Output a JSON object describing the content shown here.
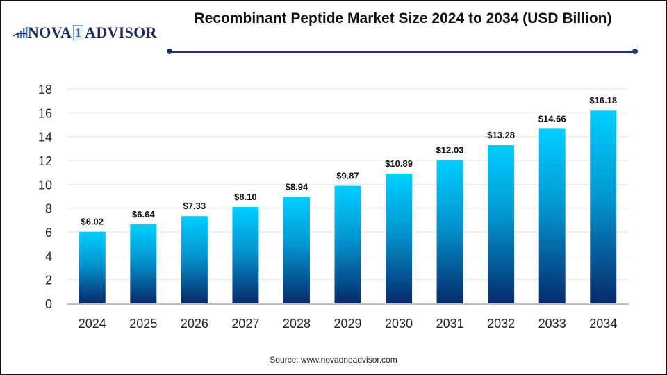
{
  "logo": {
    "icon": "bar-chart-swoosh-icon",
    "text_left": "NOVA",
    "text_mid": "1",
    "text_right": "ADVISOR",
    "colors": {
      "text": "#1d2a5c",
      "accent": "#2e6fb8"
    }
  },
  "title": "Recombinant Peptide Market Size 2024 to 2034 (USD Billion)",
  "source": "Source: www.novaoneadvisor.com",
  "colors": {
    "bar_top": "#00cfff",
    "bar_bottom": "#062a6b",
    "rule": "#243264",
    "grid": "#e6e6e6",
    "axis": "#bdbdbd"
  },
  "chart_data": {
    "type": "bar",
    "title": "Recombinant Peptide Market Size 2024 to 2034 (USD Billion)",
    "xlabel": "",
    "ylabel": "",
    "categories": [
      "2024",
      "2025",
      "2026",
      "2027",
      "2028",
      "2029",
      "2030",
      "2031",
      "2032",
      "2033",
      "2034"
    ],
    "values": [
      6.02,
      6.64,
      7.33,
      8.1,
      8.94,
      9.87,
      10.89,
      12.03,
      13.28,
      14.66,
      16.18
    ],
    "data_labels": [
      "$6.02",
      "$6.64",
      "$7.33",
      "$8.10",
      "$8.94",
      "$9.87",
      "$10.89",
      "$12.03",
      "$13.28",
      "$14.66",
      "$16.18"
    ],
    "ylim": [
      0,
      18
    ],
    "yticks": [
      0,
      2,
      4,
      6,
      8,
      10,
      12,
      14,
      16,
      18
    ],
    "grid": true,
    "legend": "none"
  }
}
